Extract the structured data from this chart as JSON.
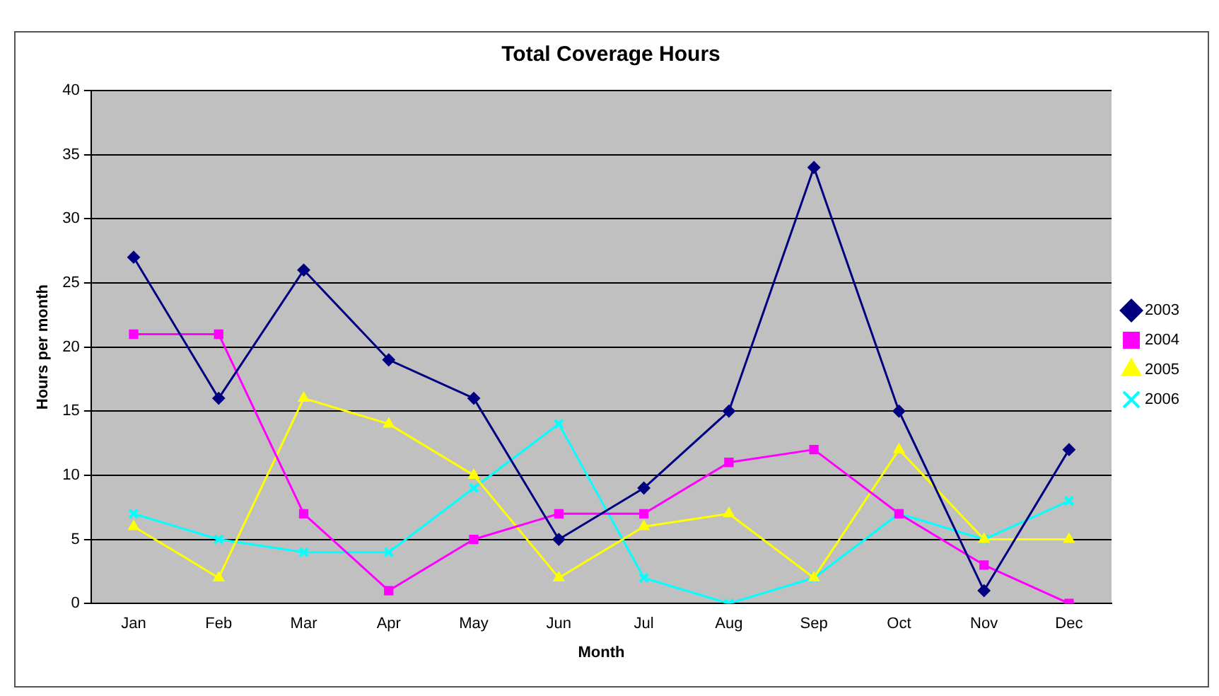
{
  "chart_data": {
    "type": "line",
    "title": "Total Coverage Hours",
    "xlabel": "Month",
    "ylabel": "Hours per month",
    "categories": [
      "Jan",
      "Feb",
      "Mar",
      "Apr",
      "May",
      "Jun",
      "Jul",
      "Aug",
      "Sep",
      "Oct",
      "Nov",
      "Dec"
    ],
    "series": [
      {
        "name": "2003",
        "color": "#000080",
        "marker": "diamond",
        "values": [
          27,
          16,
          26,
          19,
          16,
          5,
          9,
          15,
          34,
          15,
          1,
          12
        ]
      },
      {
        "name": "2004",
        "color": "#ff00ff",
        "marker": "square",
        "values": [
          21,
          21,
          7,
          1,
          5,
          7,
          7,
          11,
          12,
          7,
          3,
          0
        ]
      },
      {
        "name": "2005",
        "color": "#ffff00",
        "marker": "triangle",
        "values": [
          6,
          2,
          16,
          14,
          10,
          2,
          6,
          7,
          2,
          12,
          5,
          5
        ]
      },
      {
        "name": "2006",
        "color": "#00ffff",
        "marker": "cross",
        "values": [
          7,
          5,
          4,
          4,
          9,
          14,
          2,
          0,
          2,
          7,
          5,
          8
        ]
      }
    ],
    "ylim": [
      0,
      40
    ],
    "yticks": [
      0,
      5,
      10,
      15,
      20,
      25,
      30,
      35,
      40
    ],
    "grid": "y",
    "legend": "right",
    "line_style": "solid"
  }
}
